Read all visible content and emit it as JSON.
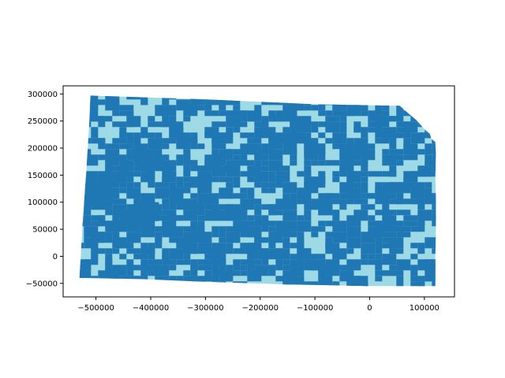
{
  "figure": {
    "background": "#ffffff"
  },
  "map": {
    "region": "Kansas",
    "fill_colors": {
      "dark": "#1f77b4",
      "light": "#9edae5"
    },
    "pattern": "two-class categorical choropleth of small census polygons"
  },
  "chart_data": {
    "type": "map",
    "title": "",
    "xlabel": "",
    "ylabel": "",
    "xlim": [
      -560000,
      155000
    ],
    "ylim": [
      -75000,
      315000
    ],
    "grid": false,
    "legend": "none",
    "x_ticks": [
      -500000,
      -400000,
      -300000,
      -200000,
      -100000,
      0,
      100000
    ],
    "x_tick_labels": [
      "−500000",
      "−400000",
      "−300000",
      "−200000",
      "−100000",
      "0",
      "100000"
    ],
    "y_ticks": [
      -50000,
      0,
      50000,
      100000,
      150000,
      200000,
      250000,
      300000
    ],
    "y_tick_labels": [
      "−50000",
      "0",
      "50000",
      "100000",
      "150000",
      "200000",
      "250000",
      "300000"
    ],
    "outline": [
      [
        -510000,
        297000
      ],
      [
        -300000,
        290000
      ],
      [
        -100000,
        281000
      ],
      [
        55000,
        278000
      ],
      [
        72000,
        263000
      ],
      [
        85000,
        252000
      ],
      [
        100000,
        235000
      ],
      [
        110000,
        226000
      ],
      [
        112000,
        218000
      ],
      [
        120000,
        211000
      ],
      [
        121000,
        190000
      ],
      [
        120000,
        150000
      ],
      [
        121000,
        100000
      ],
      [
        121000,
        50000
      ],
      [
        120000,
        0
      ],
      [
        120000,
        -55000
      ],
      [
        0,
        -55000
      ],
      [
        -150000,
        -52000
      ],
      [
        -300000,
        -47000
      ],
      [
        -420000,
        -42000
      ],
      [
        -530000,
        -40000
      ],
      [
        -525000,
        50000
      ],
      [
        -518000,
        150000
      ],
      [
        -512000,
        250000
      ]
    ]
  }
}
